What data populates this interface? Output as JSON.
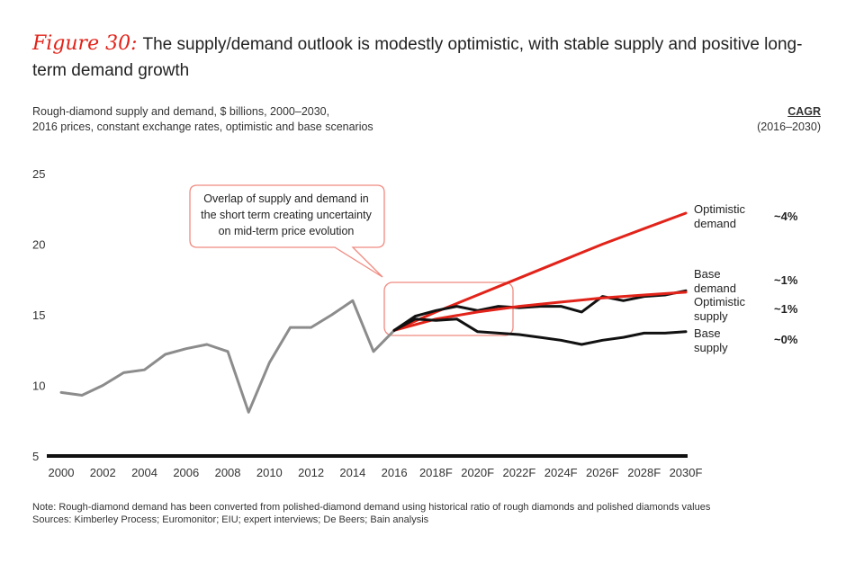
{
  "figure": {
    "label": "Figure 30:",
    "title": "The supply/demand outlook is modestly optimistic, with stable supply and positive long-term demand growth"
  },
  "subtitle": {
    "line1": "Rough-diamond supply and demand, $ billions, 2000–2030,",
    "line2": "2016 prices, constant exchange rates, optimistic and base scenarios"
  },
  "cagr": {
    "title": "CAGR",
    "period": "(2016–2030)"
  },
  "callout": {
    "line1": "Overlap of supply and demand in",
    "line2": "the short term creating uncertainty",
    "line3": "on mid-term price evolution"
  },
  "notes": {
    "note": "Note: Rough-diamond demand has been converted from polished-diamond demand using historical ratio of rough diamonds and polished diamonds values",
    "sources": "Sources: Kimberley Process; Euromonitor; EIU; expert interviews; De Beers; Bain analysis"
  },
  "colors": {
    "red": "#e2231a",
    "black": "#111111",
    "grey": "#8c8c8c"
  },
  "chart_data": {
    "type": "line",
    "xlabel": "",
    "ylabel": "",
    "xlim": [
      2000,
      2030
    ],
    "ylim": [
      5,
      25
    ],
    "yticks": [
      5,
      10,
      15,
      20,
      25
    ],
    "xticks": [
      {
        "x": 2000,
        "label": "2000"
      },
      {
        "x": 2002,
        "label": "2002"
      },
      {
        "x": 2004,
        "label": "2004"
      },
      {
        "x": 2006,
        "label": "2006"
      },
      {
        "x": 2008,
        "label": "2008"
      },
      {
        "x": 2010,
        "label": "2010"
      },
      {
        "x": 2012,
        "label": "2012"
      },
      {
        "x": 2014,
        "label": "2014"
      },
      {
        "x": 2016,
        "label": "2016"
      },
      {
        "x": 2018,
        "label": "2018F"
      },
      {
        "x": 2020,
        "label": "2020F"
      },
      {
        "x": 2022,
        "label": "2022F"
      },
      {
        "x": 2024,
        "label": "2024F"
      },
      {
        "x": 2026,
        "label": "2026F"
      },
      {
        "x": 2028,
        "label": "2028F"
      },
      {
        "x": 2030,
        "label": "2030F"
      }
    ],
    "series": [
      {
        "name": "Historical",
        "color": "#8c8c8c",
        "x": [
          2000,
          2001,
          2002,
          2003,
          2004,
          2005,
          2006,
          2007,
          2008,
          2009,
          2010,
          2011,
          2012,
          2013,
          2014,
          2015,
          2016
        ],
        "y": [
          9.5,
          9.3,
          10.0,
          10.9,
          11.1,
          12.2,
          12.6,
          12.9,
          12.4,
          8.1,
          11.6,
          14.1,
          14.1,
          15.0,
          16.0,
          12.4,
          13.9
        ]
      },
      {
        "name": "Optimistic demand",
        "label_lines": [
          "Optimistic",
          "demand"
        ],
        "cagr": "~4%",
        "color": "#e2231a",
        "x": [
          2016,
          2018,
          2020,
          2022,
          2024,
          2026,
          2028,
          2030
        ],
        "y": [
          13.9,
          15.2,
          16.4,
          17.6,
          18.8,
          20.0,
          21.1,
          22.2
        ]
      },
      {
        "name": "Base demand",
        "label_lines": [
          "Base",
          "demand"
        ],
        "cagr": "~1%",
        "color": "#111111",
        "x": [
          2016,
          2017,
          2018,
          2019,
          2020,
          2021,
          2022,
          2023,
          2024,
          2025,
          2026,
          2027,
          2028,
          2029,
          2030
        ],
        "y": [
          13.9,
          14.9,
          15.3,
          15.6,
          15.3,
          15.6,
          15.5,
          15.6,
          15.6,
          15.2,
          16.3,
          16.0,
          16.3,
          16.4,
          16.7
        ]
      },
      {
        "name": "Optimistic supply",
        "label_lines": [
          "Optimistic",
          "supply"
        ],
        "cagr": "~1%",
        "color": "#e2231a",
        "x": [
          2016,
          2018,
          2020,
          2022,
          2024,
          2026,
          2028,
          2030
        ],
        "y": [
          13.9,
          14.7,
          15.2,
          15.6,
          15.9,
          16.2,
          16.4,
          16.6
        ]
      },
      {
        "name": "Base supply",
        "label_lines": [
          "Base",
          "supply"
        ],
        "cagr": "~0%",
        "color": "#111111",
        "x": [
          2016,
          2017,
          2018,
          2019,
          2020,
          2021,
          2022,
          2023,
          2024,
          2025,
          2026,
          2027,
          2028,
          2029,
          2030
        ],
        "y": [
          13.9,
          14.7,
          14.6,
          14.7,
          13.8,
          13.7,
          13.6,
          13.4,
          13.2,
          12.9,
          13.2,
          13.4,
          13.7,
          13.7,
          13.8
        ]
      }
    ]
  }
}
